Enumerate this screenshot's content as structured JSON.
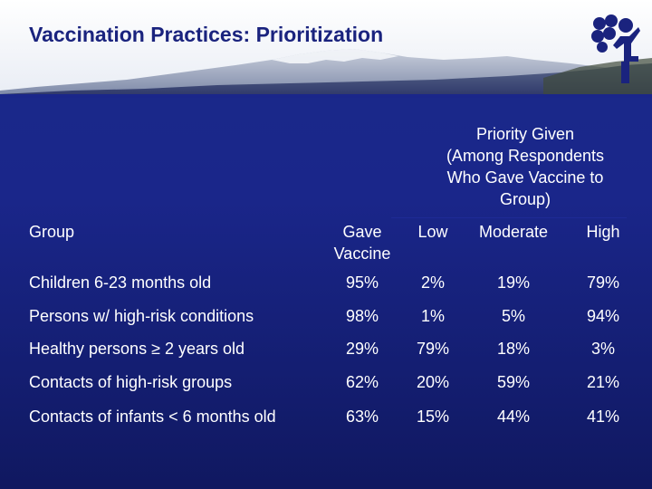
{
  "title": "Vaccination Practices: Prioritization",
  "table": {
    "priority_header": [
      "Priority Given",
      "(Among Respondents",
      "Who Gave Vaccine to",
      "Group)"
    ],
    "columns": {
      "group": "Group",
      "gave_vaccine": [
        "Gave",
        "Vaccine"
      ],
      "low": "Low",
      "moderate": "Moderate",
      "high": "High"
    },
    "rows": [
      {
        "group": "Children 6-23 months old",
        "gave": "95%",
        "low": "2%",
        "moderate": "19%",
        "high": "79%"
      },
      {
        "group": "Persons w/ high-risk conditions",
        "gave": "98%",
        "low": "1%",
        "moderate": "5%",
        "high": "94%"
      },
      {
        "group": "Healthy persons ≥ 2 years old",
        "gave": "29%",
        "low": "79%",
        "moderate": "18%",
        "high": "3%"
      },
      {
        "group": "Contacts of high-risk groups",
        "gave": "62%",
        "low": "20%",
        "moderate": "59%",
        "high": "21%"
      },
      {
        "group": "Contacts of infants < 6 months old",
        "gave": "63%",
        "low": "15%",
        "moderate": "44%",
        "high": "41%"
      }
    ]
  }
}
